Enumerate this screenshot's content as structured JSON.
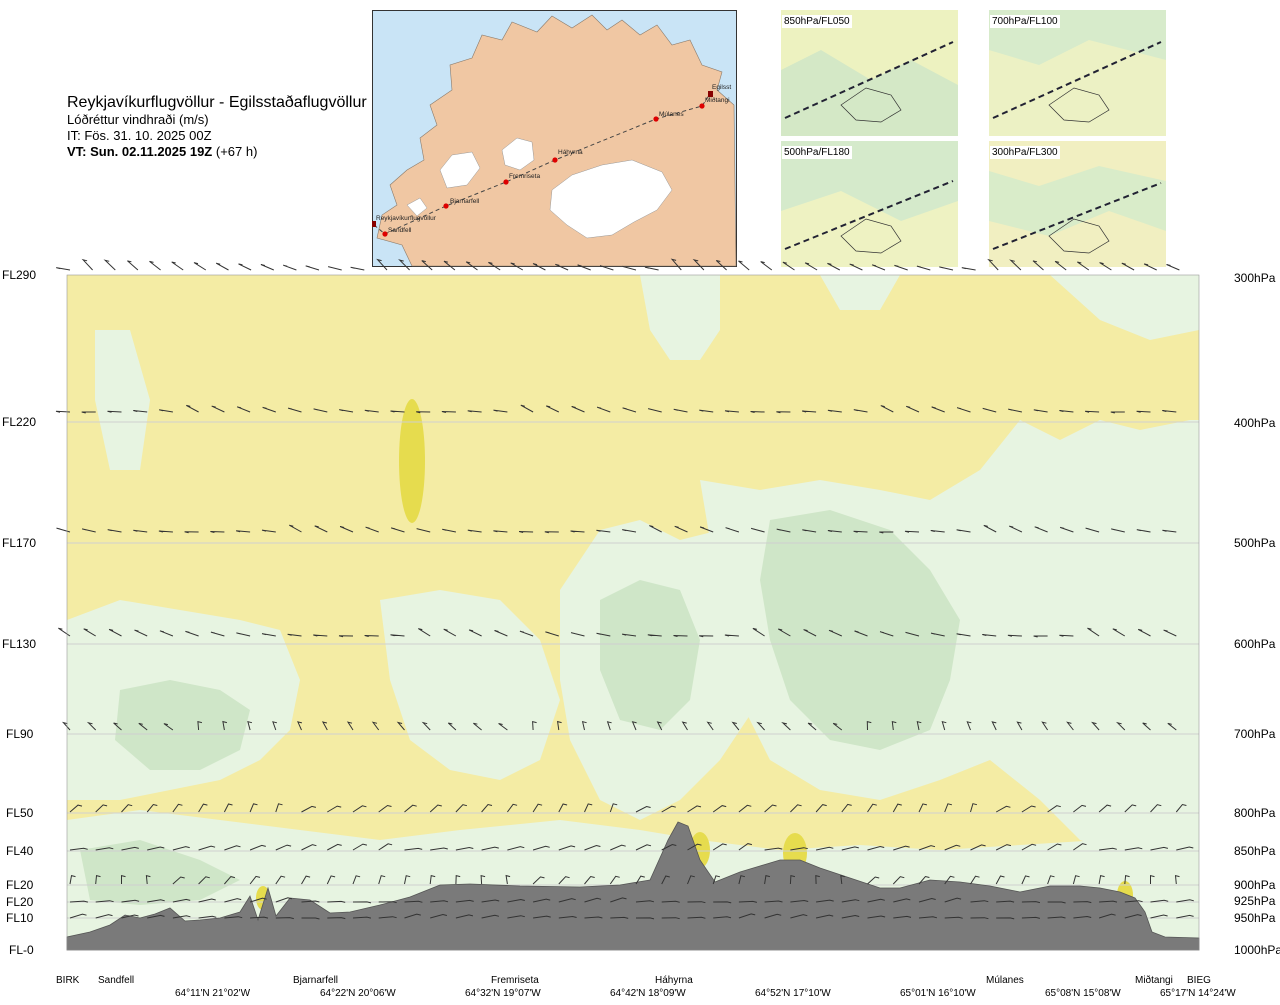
{
  "header": {
    "route": "Reykjavíkurflugvöllur - Egilsstaðaflugvöllur",
    "parameter": "Lóðréttur vindhraði (m/s)",
    "issue_time": "IT: Fös. 31. 10. 2025 00Z",
    "valid_time_bold": "VT: Sun. 02.11.2025 19Z",
    "valid_time_offset": "(+67 h)"
  },
  "map": {
    "points": [
      "Reykjavíkurflugvöllur",
      "Sandfell",
      "Bjarnarfell",
      "Fremriseta",
      "Háhyrna",
      "Múlanes",
      "Miðtangi",
      "Egilsst"
    ]
  },
  "mini_maps": [
    {
      "label": "850hPa/FL050"
    },
    {
      "label": "700hPa/FL100"
    },
    {
      "label": "500hPa/FL180"
    },
    {
      "label": "300hPa/FL300"
    }
  ],
  "levels": [
    {
      "fl": "FL290",
      "hpa": "300hPa"
    },
    {
      "fl": "FL220",
      "hpa": "400hPa"
    },
    {
      "fl": "FL170",
      "hpa": "500hPa"
    },
    {
      "fl": "FL130",
      "hpa": "600hPa"
    },
    {
      "fl": "FL90",
      "hpa": "700hPa"
    },
    {
      "fl": "FL50",
      "hpa": "800hPa"
    },
    {
      "fl": "FL40",
      "hpa": "850hPa"
    },
    {
      "fl": "FL20",
      "hpa": "900hPa"
    },
    {
      "fl": "FL20",
      "hpa": "925hPa"
    },
    {
      "fl": "FL10",
      "hpa": "950hPa"
    },
    {
      "fl": "FL-0",
      "hpa": "1000hPa"
    }
  ],
  "waypoints": [
    "BIRK",
    "Sandfell",
    "Bjarnarfell",
    "Fremriseta",
    "Háhyrna",
    "Múlanes",
    "Miðtangi",
    "BIEG"
  ],
  "coordinates": [
    "64°11'N 21°02'W",
    "64°22'N 20°06'W",
    "64°32'N 19°07'W",
    "64°42'N 18°09'W",
    "64°52'N 17°10'W",
    "65°01'N 16°10'W",
    "65°08'N 15°08'W",
    "65°17'N 14°24'W"
  ],
  "chart_data": {
    "type": "heatmap",
    "title": "Lóðréttur vindhraði (m/s)",
    "x_categories": [
      "BIRK",
      "Sandfell",
      "Bjarnarfell",
      "Fremriseta",
      "Háhyrna",
      "Múlanes",
      "Miðtangi",
      "BIEG"
    ],
    "y_levels_hpa": [
      300,
      400,
      500,
      600,
      700,
      800,
      850,
      900,
      925,
      950,
      1000
    ],
    "y_levels_fl": [
      "FL290",
      "FL220",
      "FL170",
      "FL130",
      "FL90",
      "FL50",
      "FL40",
      "FL20",
      "FL20",
      "FL10",
      "FL-0"
    ],
    "colors": {
      "weak_up": "#f4eca4",
      "moderate_up": "#e6dc4e",
      "weak_down": "#e6f4e2",
      "moderate_down": "#c8e4c6",
      "neutral": "#fdfde6",
      "terrain": "#7a7a7a"
    },
    "grid": true
  }
}
